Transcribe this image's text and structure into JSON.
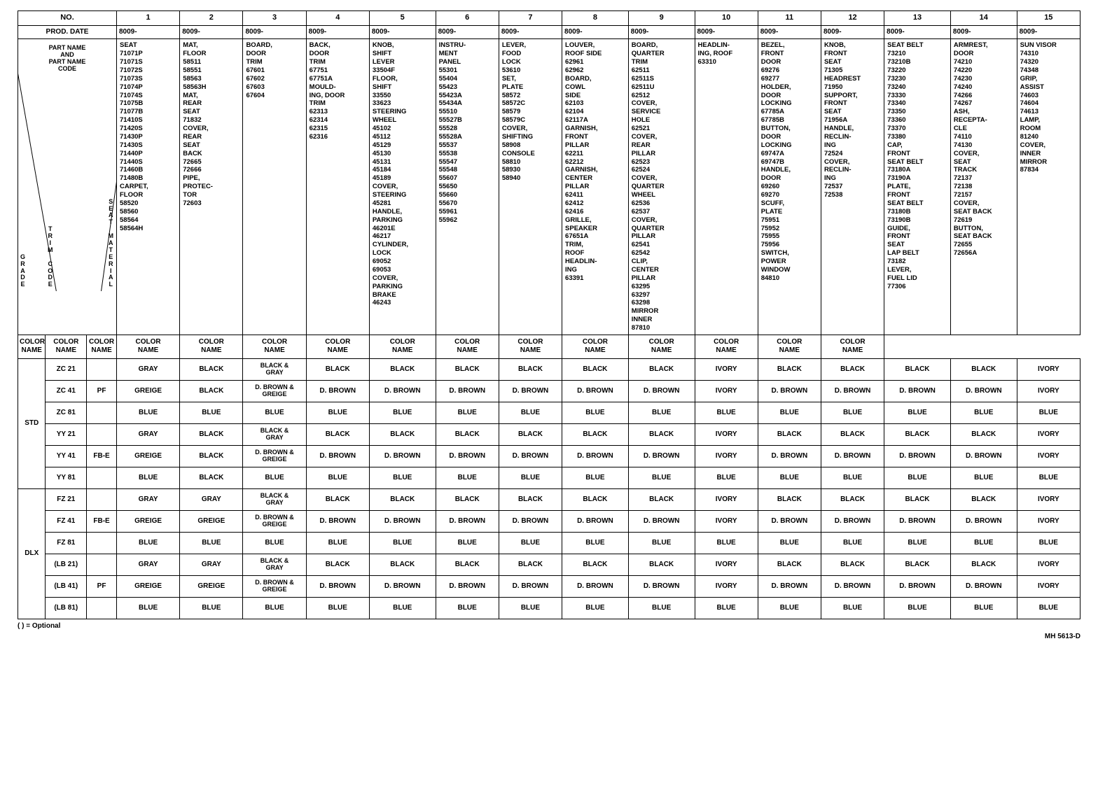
{
  "doc_id": "MH 5613-D",
  "footnote": "(      ) = Optional",
  "header": {
    "label_no": "NO.",
    "label_prod": "PROD. DATE",
    "numbers": [
      "1",
      "2",
      "3",
      "4",
      "5",
      "6",
      "7",
      "8",
      "9",
      "10",
      "11",
      "12",
      "13",
      "14",
      "15"
    ],
    "prod_dates": [
      "8009-",
      "8009-",
      "8009-",
      "8009-",
      "8009-",
      "8009-",
      "8009-",
      "8009-",
      "8009-",
      "8009-",
      "8009-",
      "8009-",
      "8009-",
      "8009-",
      "8009-"
    ]
  },
  "corner": {
    "top": "PART NAME\nAND\nPART NAME\nCODE",
    "left": "G\nR\nA\nD\nE",
    "mid_left": "T\nR\nI\nM\n\nC\nO\nD\nE",
    "right": "S\nE\nA\nT\n\nM\nA\nT\nE\nR\nI\nA\nL"
  },
  "parts": [
    "SEAT\n71071P\n71071S\n71072S\n71073S\n71074P\n71074S\n71075B\n71077B\n71410S\n71420S\n71430P\n71430S\n71440P\n71440S\n71460B\n71480B\nCARPET,\n   FLOOR\n58520\n58560\n58564\n58564H",
    "MAT,\n   FLOOR\n58511\n58551\n58563\n58563H\nMAT,\n   REAR\n   SEAT\n71832\nCOVER,\n   REAR\n   SEAT\n   BACK\n72665\n72666\nPIPE,\n   PROTEC-\n   TOR\n72603",
    "BOARD,\n   DOOR\n   TRIM\n67601\n67602\n67603\n67604",
    "BACK,\n   DOOR\n   TRIM\n67751\n67751A\nMOULD-\nING, DOOR\n   TRIM\n62313\n62314\n62315\n62316",
    "KNOB,\n   SHIFT\n   LEVER\n33504F\nFLOOR,\n   SHIFT\n33550\n33623\nSTEERING\n   WHEEL\n45102\n45112\n45129\n45130\n45131\n45184\n45189\nCOVER,\n   STEERING\n45281\nHANDLE,\n   PARKING\n46201E\n46217\nCYLINDER,\n   LOCK\n69052\n69053\nCOVER,\n   PARKING\n   BRAKE\n46243",
    "INSTRU-\nMENT\n   PANEL\n55301\n55404\n55423\n55423A\n55434A\n55510\n55527B\n55528\n55528A\n55537\n55538\n55547\n55548\n55607\n55650\n55660\n55670\n55961\n55962",
    "LEVER,\n   FOOD\n   LOCK\n53610\nSET,\n   PLATE\n58572\n58572C\n58579\n58579C\nCOVER,\n   SHIFTING\n58908\nCONSOLE\n58810\n58930\n58940",
    "LOUVER,\n   ROOF SIDE\n62961\n62962\nBOARD,\n   COWL\n   SIDE\n62103\n62104\n62117A\nGARNISH,\n   FRONT\n   PILLAR\n62211\n62212\nGARNISH,\n   CENTER\n   PILLAR\n62411\n62412\n62416\nGRILLE,\n   SPEAKER\n67651A\nTRIM,\n   ROOF\nHEADLIN-\n   ING\n63391",
    "BOARD,\n   QUARTER\n   TRIM\n62511\n62511S\n62511U\n62512\nCOVER,\n   SERVICE\n   HOLE\n62521\nCOVER,\n   REAR\n   PILLAR\n62523\n62524\nCOVER,\n   QUARTER\n   WHEEL\n62536\n62537\nCOVER,\n   QUARTER\n   PILLAR\n62541\n62542\nCLIP,\n   CENTER\n   PILLAR\n63295\n63297\n63298\nMIRROR\n   INNER\n87810",
    "HEADLIN-\nING, ROOF\n63310",
    "BEZEL,\n   FRONT\n   DOOR\n69276\n69277\nHOLDER,\n   DOOR\n   LOCKING\n67785A\n67785B\nBUTTON,\n   DOOR\n   LOCKING\n69747A\n69747B\nHANDLE,\n   DOOR\n69260\n69270\nSCUFF,\n   PLATE\n75951\n75952\n75955\n75956\nSWITCH,\n   POWER\n   WINDOW\n84810",
    "KNOB,\n   FRONT\n   SEAT\n71305\nHEADREST\n71950\nSUPPORT,\n   FRONT\n   SEAT\n71956A\nHANDLE,\n   RECLIN-\n   ING\n72524\nCOVER,\n   RECLIN-\n   ING\n72537\n72538",
    "SEAT BELT\n73210\n73210B\n73220\n73230\n73240\n73330\n73340\n73350\n73360\n73370\n73380\nCAP,\n   FRONT\n   SEAT BELT\n73180A\n73190A\nPLATE,\n   FRONT\n   SEAT BELT\n73180B\n73190B\nGUIDE,\n   FRONT\n   SEAT\n   LAP BELT\n73182\nLEVER,\n   FUEL LID\n77306",
    "ARMREST,\n   DOOR\n74210\n74220\n74230\n74240\n74266\n74267\nASH,\n   RECEPTA-\n   CLE\n74110\n74130\nCOVER,\n   SEAT\n   TRACK\n72137\n72138\n72157\nCOVER,\n   SEAT BACK\n72619\nBUTTON,\n   SEAT BACK\n72655\n72656A",
    "SUN VISOR\n74310\n74320\n74348\nGRIP,\n   ASSIST\n74603\n74604\n74613\nLAMP,\n   ROOM\n81240\nCOVER,\n   INNER\n   MIRROR\n87834"
  ],
  "color_label": "COLOR\nNAME",
  "groups": [
    {
      "grade": "STD",
      "rows": [
        {
          "code": "ZC 21",
          "mat": "",
          "c": [
            "GRAY",
            "BLACK",
            "BLACK &\nGRAY",
            "BLACK",
            "BLACK",
            "BLACK",
            "BLACK",
            "BLACK",
            "BLACK",
            "IVORY",
            "BLACK",
            "BLACK",
            "BLACK",
            "BLACK",
            "IVORY"
          ]
        },
        {
          "code": "ZC 41",
          "mat": "PF",
          "c": [
            "GREIGE",
            "BLACK",
            "D. BROWN &\nGREIGE",
            "D. BROWN",
            "D. BROWN",
            "D. BROWN",
            "D. BROWN",
            "D. BROWN",
            "D. BROWN",
            "IVORY",
            "D. BROWN",
            "D. BROWN",
            "D. BROWN",
            "D. BROWN",
            "IVORY"
          ]
        },
        {
          "code": "ZC 81",
          "mat": "",
          "c": [
            "BLUE",
            "BLUE",
            "BLUE",
            "BLUE",
            "BLUE",
            "BLUE",
            "BLUE",
            "BLUE",
            "BLUE",
            "BLUE",
            "BLUE",
            "BLUE",
            "BLUE",
            "BLUE",
            "BLUE"
          ]
        },
        {
          "code": "YY 21",
          "mat": "",
          "c": [
            "GRAY",
            "BLACK",
            "BLACK &\nGRAY",
            "BLACK",
            "BLACK",
            "BLACK",
            "BLACK",
            "BLACK",
            "BLACK",
            "IVORY",
            "BLACK",
            "BLACK",
            "BLACK",
            "BLACK",
            "IVORY"
          ]
        },
        {
          "code": "YY 41",
          "mat": "FB-E",
          "c": [
            "GREIGE",
            "BLACK",
            "D. BROWN &\nGREIGE",
            "D. BROWN",
            "D. BROWN",
            "D. BROWN",
            "D. BROWN",
            "D. BROWN",
            "D. BROWN",
            "IVORY",
            "D. BROWN",
            "D. BROWN",
            "D. BROWN",
            "D. BROWN",
            "IVORY"
          ]
        },
        {
          "code": "YY 81",
          "mat": "",
          "c": [
            "BLUE",
            "BLACK",
            "BLUE",
            "BLUE",
            "BLUE",
            "BLUE",
            "BLUE",
            "BLUE",
            "BLUE",
            "BLUE",
            "BLUE",
            "BLUE",
            "BLUE",
            "BLUE",
            "BLUE"
          ]
        }
      ]
    },
    {
      "grade": "DLX",
      "rows": [
        {
          "code": "FZ 21",
          "mat": "",
          "c": [
            "GRAY",
            "GRAY",
            "BLACK &\nGRAY",
            "BLACK",
            "BLACK",
            "BLACK",
            "BLACK",
            "BLACK",
            "BLACK",
            "IVORY",
            "BLACK",
            "BLACK",
            "BLACK",
            "BLACK",
            "IVORY"
          ]
        },
        {
          "code": "FZ 41",
          "mat": "FB-E",
          "c": [
            "GREIGE",
            "GREIGE",
            "D. BROWN &\nGREIGE",
            "D. BROWN",
            "D. BROWN",
            "D. BROWN",
            "D. BROWN",
            "D. BROWN",
            "D. BROWN",
            "IVORY",
            "D. BROWN",
            "D. BROWN",
            "D. BROWN",
            "D. BROWN",
            "IVORY"
          ]
        },
        {
          "code": "FZ 81",
          "mat": "",
          "c": [
            "BLUE",
            "BLUE",
            "BLUE",
            "BLUE",
            "BLUE",
            "BLUE",
            "BLUE",
            "BLUE",
            "BLUE",
            "BLUE",
            "BLUE",
            "BLUE",
            "BLUE",
            "BLUE",
            "BLUE"
          ]
        },
        {
          "code": "(LB 21)",
          "mat": "",
          "c": [
            "GRAY",
            "GRAY",
            "BLACK &\nGRAY",
            "BLACK",
            "BLACK",
            "BLACK",
            "BLACK",
            "BLACK",
            "BLACK",
            "IVORY",
            "BLACK",
            "BLACK",
            "BLACK",
            "BLACK",
            "IVORY"
          ]
        },
        {
          "code": "(LB 41)",
          "mat": "PF",
          "c": [
            "GREIGE",
            "GREIGE",
            "D. BROWN &\nGREIGE",
            "D. BROWN",
            "D. BROWN",
            "D. BROWN",
            "D. BROWN",
            "D. BROWN",
            "D. BROWN",
            "IVORY",
            "D. BROWN",
            "D. BROWN",
            "D. BROWN",
            "D. BROWN",
            "IVORY"
          ]
        },
        {
          "code": "(LB 81)",
          "mat": "",
          "c": [
            "BLUE",
            "BLUE",
            "BLUE",
            "BLUE",
            "BLUE",
            "BLUE",
            "BLUE",
            "BLUE",
            "BLUE",
            "BLUE",
            "BLUE",
            "BLUE",
            "BLUE",
            "BLUE",
            "BLUE"
          ]
        }
      ]
    }
  ]
}
